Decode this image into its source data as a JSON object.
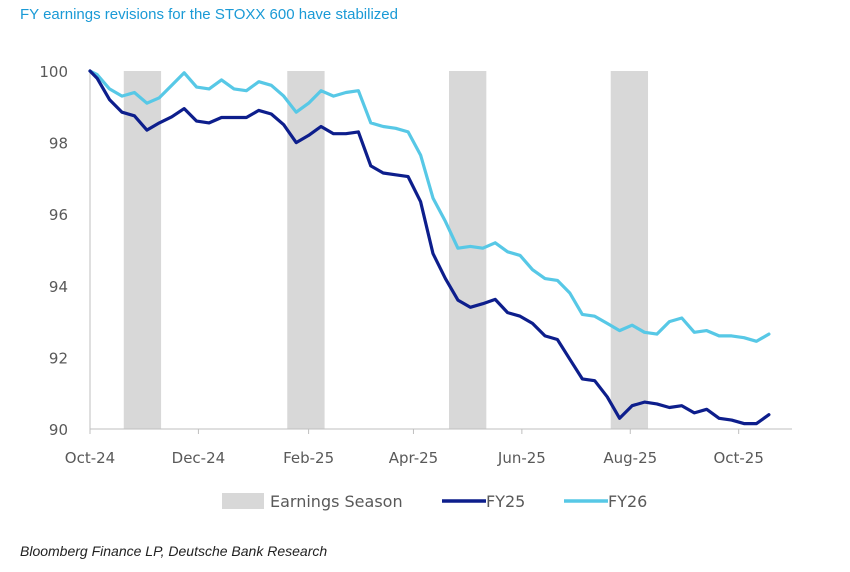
{
  "title": "FY earnings revisions for the STOXX 600 have stabilized",
  "source": "Bloomberg Finance LP, Deutsche Bank Research",
  "colors": {
    "fy25": "#0d1e8c",
    "fy26": "#57c8e6",
    "season": "#d8d8d8",
    "axis": "#bfbfbf"
  },
  "chart_data": {
    "type": "line",
    "title": "FY earnings revisions for the STOXX 600 have stabilized",
    "xlabel": "",
    "ylabel": "",
    "ylim": [
      90,
      100
    ],
    "xlim": [
      "2024-10-01",
      "2025-10-31"
    ],
    "y_ticks": [
      90,
      92,
      94,
      96,
      98,
      100
    ],
    "x_ticks": [
      {
        "date": "2024-10-01",
        "label": "Oct-24"
      },
      {
        "date": "2024-12-01",
        "label": "Dec-24"
      },
      {
        "date": "2025-02-01",
        "label": "Feb-25"
      },
      {
        "date": "2025-04-01",
        "label": "Apr-25"
      },
      {
        "date": "2025-06-01",
        "label": "Jun-25"
      },
      {
        "date": "2025-08-01",
        "label": "Aug-25"
      },
      {
        "date": "2025-10-01",
        "label": "Oct-25"
      }
    ],
    "grid": false,
    "legend": "bottom",
    "shaded_periods": {
      "name": "Earnings Season",
      "ranges": [
        [
          "2024-10-20",
          "2024-11-10"
        ],
        [
          "2025-01-20",
          "2025-02-10"
        ],
        [
          "2025-04-21",
          "2025-05-12"
        ],
        [
          "2025-07-21",
          "2025-08-11"
        ]
      ]
    },
    "series": [
      {
        "name": "FY25",
        "x": [
          "2024-10-01",
          "2024-10-05",
          "2024-10-12",
          "2024-10-19",
          "2024-10-26",
          "2024-11-02",
          "2024-11-09",
          "2024-11-16",
          "2024-11-23",
          "2024-11-30",
          "2024-12-07",
          "2024-12-14",
          "2024-12-21",
          "2024-12-28",
          "2025-01-04",
          "2025-01-11",
          "2025-01-18",
          "2025-01-25",
          "2025-02-01",
          "2025-02-08",
          "2025-02-15",
          "2025-02-22",
          "2025-03-01",
          "2025-03-08",
          "2025-03-15",
          "2025-03-22",
          "2025-03-29",
          "2025-04-05",
          "2025-04-12",
          "2025-04-19",
          "2025-04-26",
          "2025-05-03",
          "2025-05-10",
          "2025-05-17",
          "2025-05-24",
          "2025-05-31",
          "2025-06-07",
          "2025-06-14",
          "2025-06-21",
          "2025-06-28",
          "2025-07-05",
          "2025-07-12",
          "2025-07-19",
          "2025-07-26",
          "2025-08-02",
          "2025-08-09",
          "2025-08-16",
          "2025-08-23",
          "2025-08-30",
          "2025-09-06",
          "2025-09-13",
          "2025-09-20",
          "2025-09-27",
          "2025-10-04",
          "2025-10-11",
          "2025-10-18"
        ],
        "values": [
          100.0,
          99.8,
          99.2,
          98.85,
          98.75,
          98.35,
          98.55,
          98.72,
          98.95,
          98.6,
          98.55,
          98.7,
          98.7,
          98.7,
          98.9,
          98.8,
          98.5,
          98.0,
          98.2,
          98.45,
          98.25,
          98.25,
          98.3,
          97.35,
          97.15,
          97.1,
          97.05,
          96.35,
          94.9,
          94.2,
          93.6,
          93.4,
          93.5,
          93.62,
          93.25,
          93.15,
          92.95,
          92.6,
          92.5,
          91.95,
          91.4,
          91.35,
          90.9,
          90.3,
          90.65,
          90.75,
          90.7,
          90.6,
          90.65,
          90.45,
          90.55,
          90.3,
          90.25,
          90.15,
          90.15,
          90.4
        ]
      },
      {
        "name": "FY26",
        "x": [
          "2024-10-01",
          "2024-10-05",
          "2024-10-12",
          "2024-10-19",
          "2024-10-26",
          "2024-11-02",
          "2024-11-09",
          "2024-11-16",
          "2024-11-23",
          "2024-11-30",
          "2024-12-07",
          "2024-12-14",
          "2024-12-21",
          "2024-12-28",
          "2025-01-04",
          "2025-01-11",
          "2025-01-18",
          "2025-01-25",
          "2025-02-01",
          "2025-02-08",
          "2025-02-15",
          "2025-02-22",
          "2025-03-01",
          "2025-03-08",
          "2025-03-15",
          "2025-03-22",
          "2025-03-29",
          "2025-04-05",
          "2025-04-12",
          "2025-04-19",
          "2025-04-26",
          "2025-05-03",
          "2025-05-10",
          "2025-05-17",
          "2025-05-24",
          "2025-05-31",
          "2025-06-07",
          "2025-06-14",
          "2025-06-21",
          "2025-06-28",
          "2025-07-05",
          "2025-07-12",
          "2025-07-19",
          "2025-07-26",
          "2025-08-02",
          "2025-08-09",
          "2025-08-16",
          "2025-08-23",
          "2025-08-30",
          "2025-09-06",
          "2025-09-13",
          "2025-09-20",
          "2025-09-27",
          "2025-10-04",
          "2025-10-11",
          "2025-10-18"
        ],
        "values": [
          100.0,
          99.9,
          99.5,
          99.3,
          99.4,
          99.1,
          99.25,
          99.6,
          99.95,
          99.55,
          99.5,
          99.75,
          99.5,
          99.45,
          99.7,
          99.6,
          99.3,
          98.85,
          99.1,
          99.45,
          99.3,
          99.4,
          99.45,
          98.55,
          98.45,
          98.4,
          98.3,
          97.65,
          96.45,
          95.8,
          95.05,
          95.1,
          95.05,
          95.2,
          94.95,
          94.85,
          94.45,
          94.2,
          94.15,
          93.8,
          93.2,
          93.15,
          92.95,
          92.75,
          92.9,
          92.7,
          92.65,
          93.0,
          93.1,
          92.7,
          92.75,
          92.6,
          92.6,
          92.55,
          92.45,
          92.65
        ]
      }
    ]
  }
}
